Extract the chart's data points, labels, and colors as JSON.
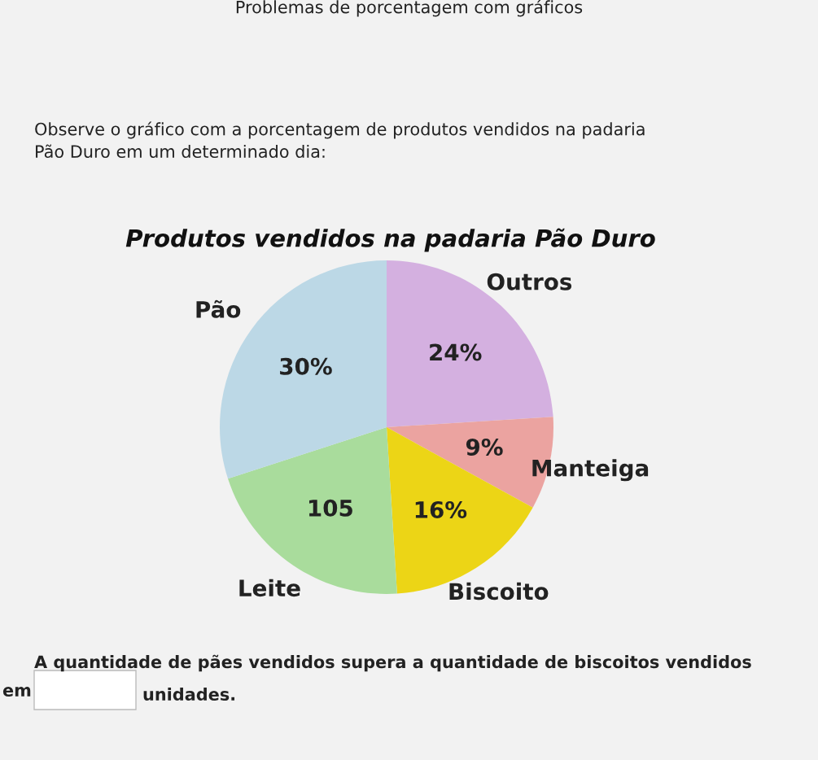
{
  "chart_data": {
    "type": "pie",
    "title": "Produtos vendidos na padaria Pão Duro",
    "categories": [
      "Outros",
      "Manteiga",
      "Biscoito",
      "Leite",
      "Pão"
    ],
    "values": [
      24,
      9,
      16,
      21,
      30
    ],
    "value_labels": [
      "24%",
      "9%",
      "16%",
      null,
      "30%"
    ],
    "colors": [
      "#d4b0e0",
      "#eba3a0",
      "#ecd516",
      "#a9dc9c",
      "#bcd8e6"
    ],
    "annotations": [
      "Problemas de porcentagem com gráficos",
      "Observe o gráfico com a porcentagem de produtos vendidos na padaria",
      "Pão Duro em um determinado dia:",
      "A quantidade de pães vendidos supera a quantidade de biscoitos vendidos",
      "em",
      "unidades.",
      {
        "text": "105",
        "x": "Leite"
      }
    ]
  }
}
